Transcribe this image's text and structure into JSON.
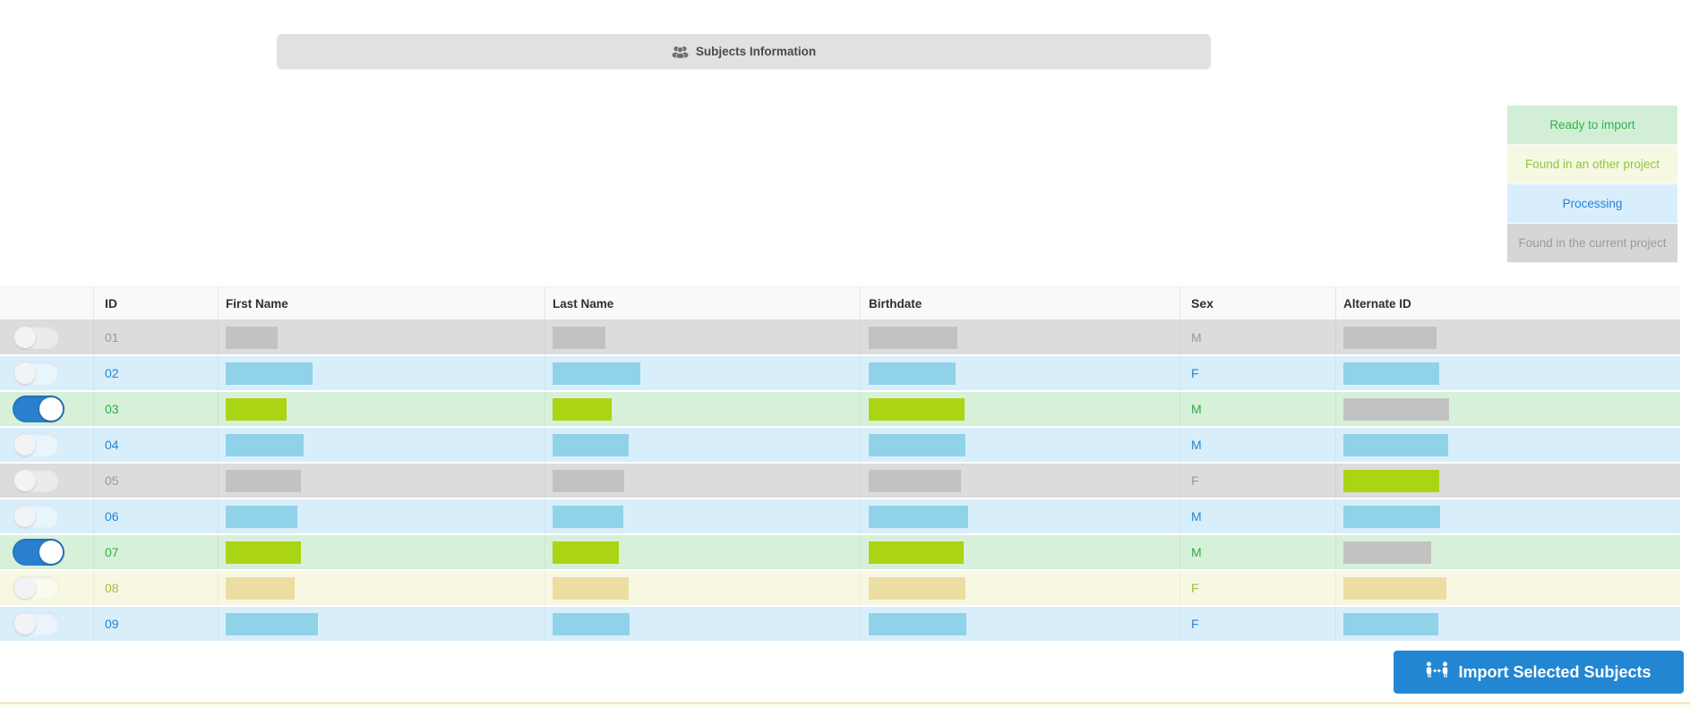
{
  "titlebar": {
    "title": "Subjects Information",
    "icon": "users-icon"
  },
  "statuses": {
    "ready": {
      "label": "Ready to import",
      "row_bg": "#d7f0da",
      "bar_color": "#abd414",
      "text_color": "#2fae45",
      "legend_bg": "#d3eed6",
      "legend_text": "#2db54b"
    },
    "other_project": {
      "label": "Found in an other project",
      "row_bg": "#f7f7e2",
      "bar_color": "#ecdda0",
      "text_color": "#9dc13e",
      "legend_bg": "#f6f8e1",
      "legend_text": "#8ec63f"
    },
    "processing": {
      "label": "Processing",
      "row_bg": "#d9eefb",
      "bar_color": "#90d3e8",
      "text_color": "#2385d0",
      "legend_bg": "#d9eefc",
      "legend_text": "#2181d8"
    },
    "current_project": {
      "label": "Found in the current project",
      "row_bg": "#dcdcdc",
      "bar_color": "#c2c2c3",
      "text_color": "#9a9a9a",
      "legend_bg": "#d6d6d6",
      "legend_text": "#9b9b9b"
    }
  },
  "legend_order": [
    "ready",
    "other_project",
    "processing",
    "current_project"
  ],
  "table": {
    "columns": [
      {
        "label": ""
      },
      {
        "label": "ID"
      },
      {
        "label": "First Name"
      },
      {
        "label": "Last Name"
      },
      {
        "label": "Birthdate"
      },
      {
        "label": "Sex"
      },
      {
        "label": "Alternate ID"
      }
    ],
    "rows": [
      {
        "id": "01",
        "status": "current_project",
        "selected": false,
        "sex": "M",
        "bars": {
          "first_name": 58,
          "last_name": 59,
          "birthdate": 99,
          "alternate_id": 104
        }
      },
      {
        "id": "02",
        "status": "processing",
        "selected": false,
        "sex": "F",
        "bars": {
          "first_name": 97,
          "last_name": 98,
          "birthdate": 97,
          "alternate_id": 107
        }
      },
      {
        "id": "03",
        "status": "ready",
        "selected": true,
        "sex": "M",
        "bars": {
          "first_name": 68,
          "last_name": 66,
          "birthdate": 107,
          "alternate_id": 118
        },
        "alternate_id_status": "current_project"
      },
      {
        "id": "04",
        "status": "processing",
        "selected": false,
        "sex": "M",
        "bars": {
          "first_name": 87,
          "last_name": 85,
          "birthdate": 108,
          "alternate_id": 117
        }
      },
      {
        "id": "05",
        "status": "current_project",
        "selected": false,
        "sex": "F",
        "bars": {
          "first_name": 84,
          "last_name": 80,
          "birthdate": 103,
          "alternate_id": 107
        },
        "alternate_id_status": "ready"
      },
      {
        "id": "06",
        "status": "processing",
        "selected": false,
        "sex": "M",
        "bars": {
          "first_name": 80,
          "last_name": 79,
          "birthdate": 111,
          "alternate_id": 108
        }
      },
      {
        "id": "07",
        "status": "ready",
        "selected": true,
        "sex": "M",
        "bars": {
          "first_name": 84,
          "last_name": 74,
          "birthdate": 106,
          "alternate_id": 98
        },
        "alternate_id_status": "current_project"
      },
      {
        "id": "08",
        "status": "other_project",
        "selected": false,
        "sex": "F",
        "bars": {
          "first_name": 77,
          "last_name": 85,
          "birthdate": 108,
          "alternate_id": 115
        }
      },
      {
        "id": "09",
        "status": "processing",
        "selected": false,
        "sex": "F",
        "bars": {
          "first_name": 103,
          "last_name": 86,
          "birthdate": 109,
          "alternate_id": 106
        }
      }
    ]
  },
  "import_button": {
    "label": "Import Selected Subjects",
    "icon": "people-arrows-icon",
    "bg_color": "#2286d3"
  },
  "footer_strip": {
    "bg_color": "#fbf9e9",
    "border_color": "#ded189"
  }
}
